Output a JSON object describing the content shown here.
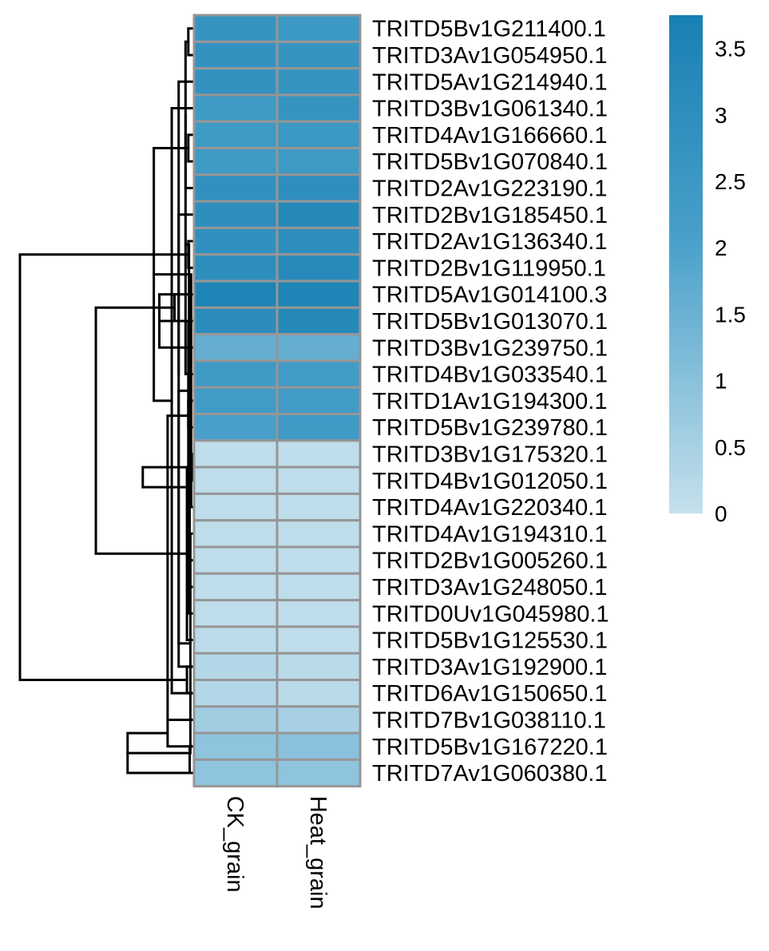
{
  "chart_data": {
    "type": "heatmap",
    "title": "",
    "xlabel": "",
    "ylabel": "",
    "columns": [
      "CK_grain",
      "Heat_grain"
    ],
    "rows": [
      "TRITD5Bv1G211400.1",
      "TRITD3Av1G054950.1",
      "TRITD5Av1G214940.1",
      "TRITD3Bv1G061340.1",
      "TRITD4Av1G166660.1",
      "TRITD5Bv1G070840.1",
      "TRITD2Av1G223190.1",
      "TRITD2Bv1G185450.1",
      "TRITD2Av1G136340.1",
      "TRITD2Bv1G119950.1",
      "TRITD5Av1G014100.3",
      "TRITD5Bv1G013070.1",
      "TRITD3Bv1G239750.1",
      "TRITD4Bv1G033540.1",
      "TRITD1Av1G194300.1",
      "TRITD5Bv1G239780.1",
      "TRITD3Bv1G175320.1",
      "TRITD4Bv1G012050.1",
      "TRITD4Av1G220340.1",
      "TRITD4Av1G194310.1",
      "TRITD2Bv1G005260.1",
      "TRITD3Av1G248050.1",
      "TRITD0Uv1G045980.1",
      "TRITD5Bv1G125530.1",
      "TRITD3Av1G192900.1",
      "TRITD6Av1G150650.1",
      "TRITD7Bv1G038110.1",
      "TRITD5Bv1G167220.1",
      "TRITD7Av1G060380.1"
    ],
    "values": [
      [
        2.7,
        2.5
      ],
      [
        2.8,
        2.7
      ],
      [
        2.8,
        2.7
      ],
      [
        2.4,
        2.7
      ],
      [
        2.4,
        2.5
      ],
      [
        2.4,
        2.4
      ],
      [
        2.9,
        3.0
      ],
      [
        3.0,
        3.3
      ],
      [
        2.9,
        3.0
      ],
      [
        3.0,
        3.2
      ],
      [
        3.5,
        3.5
      ],
      [
        3.1,
        3.3
      ],
      [
        1.6,
        1.6
      ],
      [
        2.4,
        2.3
      ],
      [
        2.3,
        2.3
      ],
      [
        2.1,
        2.4
      ],
      [
        0.1,
        0.1
      ],
      [
        0.1,
        0.1
      ],
      [
        0.1,
        0.1
      ],
      [
        0.1,
        0.1
      ],
      [
        0.1,
        0.1
      ],
      [
        0.1,
        0.1
      ],
      [
        0.1,
        0.1
      ],
      [
        0.15,
        0.1
      ],
      [
        0.3,
        0.2
      ],
      [
        0.3,
        0.2
      ],
      [
        0.6,
        0.5
      ],
      [
        0.9,
        1.0
      ],
      [
        0.9,
        0.9
      ]
    ],
    "color_scale": {
      "min": 0,
      "max": 3.75,
      "low_color": "#c5e0ec",
      "mid_color": "#49a0ca",
      "high_color": "#1880b3"
    },
    "legend": {
      "placement": "top-right",
      "ticks": [
        0,
        0.5,
        1,
        1.5,
        2,
        2.5,
        3,
        3.5
      ],
      "tick_labels": [
        "0",
        "0.5",
        "1",
        "1.5",
        "2",
        "2.5",
        "3",
        "3.5"
      ]
    },
    "grid_color": "#969696",
    "row_dendrogram": [
      [
        0,
        1,
        0.03
      ],
      [
        24,
        2,
        0.1
      ],
      [
        25,
        3,
        0.15
      ],
      [
        4,
        5,
        0.03
      ],
      [
        27,
        26,
        0.18
      ],
      [
        8,
        9,
        0.03
      ],
      [
        6,
        29,
        0.05
      ],
      [
        30,
        7,
        0.1
      ],
      [
        10,
        11,
        0.13
      ],
      [
        31,
        32,
        0.28
      ],
      [
        28,
        33,
        0.47
      ],
      [
        14,
        15,
        0.03
      ],
      [
        13,
        35,
        0.05
      ],
      [
        12,
        36,
        0.24
      ],
      [
        16,
        17,
        0.005
      ],
      [
        38,
        18,
        0.01
      ],
      [
        39,
        19,
        0.015
      ],
      [
        40,
        20,
        0.02
      ],
      [
        41,
        21,
        0.025
      ],
      [
        42,
        22,
        0.03
      ],
      [
        43,
        23,
        0.04
      ],
      [
        24,
        25,
        0.04
      ],
      [
        44,
        45,
        0.1
      ],
      [
        27,
        28,
        0.02
      ],
      [
        26,
        47,
        0.18
      ],
      [
        46,
        48,
        0.36
      ],
      [
        37,
        49,
        0.7
      ],
      [
        34,
        50,
        1.25
      ]
    ]
  }
}
